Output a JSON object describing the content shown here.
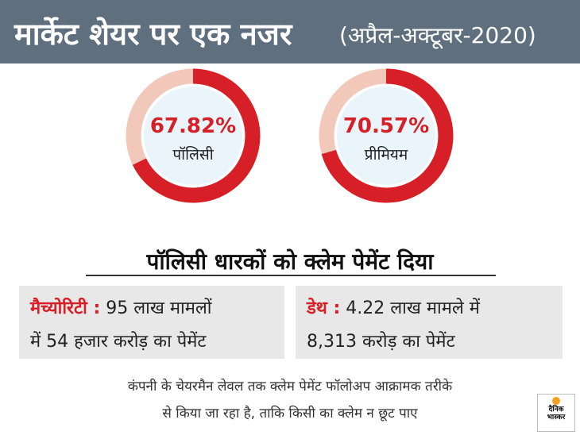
{
  "header": {
    "title": "मार्केट शेयर पर एक नजर",
    "subtitle": "(अप्रैल-अक्टूबर-2020)"
  },
  "chart_data": [
    {
      "type": "pie",
      "values": [
        67.82,
        32.18
      ],
      "center_value": "67.82%",
      "center_label": "पॉलिसी"
    },
    {
      "type": "pie",
      "values": [
        70.57,
        29.43
      ],
      "center_value": "70.57%",
      "center_label": "प्रीमियम"
    }
  ],
  "colors": {
    "primary": "#d61f26",
    "remainder": "#f2c8bb",
    "center": "#eaf4fb",
    "header_bg": "#5f6f7e"
  },
  "section_heading": "पॉलिसी धारकों को क्लेम पेमेंट दिया",
  "cards": [
    {
      "label": "मैच्योरिटी :",
      "line1_rest": " 95 लाख मामलों",
      "line2": "में 54 हजार करोड़ का पेमेंट"
    },
    {
      "label": "डेथ :",
      "line1_rest": " 4.22 लाख मामले में",
      "line2": "8,313 करोड़ का पेमेंट"
    }
  ],
  "footer": {
    "line1": "कंपनी के चेयरमैन लेवल तक क्लेम पेमेंट फॉलोअप आक्रामक तरीके",
    "line2": "से किया जा रहा है, ताकि किसी का क्लेम न छूट पाए"
  },
  "logo": {
    "icon": "sun-icon",
    "line1": "दैनिक",
    "line2": "भास्कर"
  }
}
